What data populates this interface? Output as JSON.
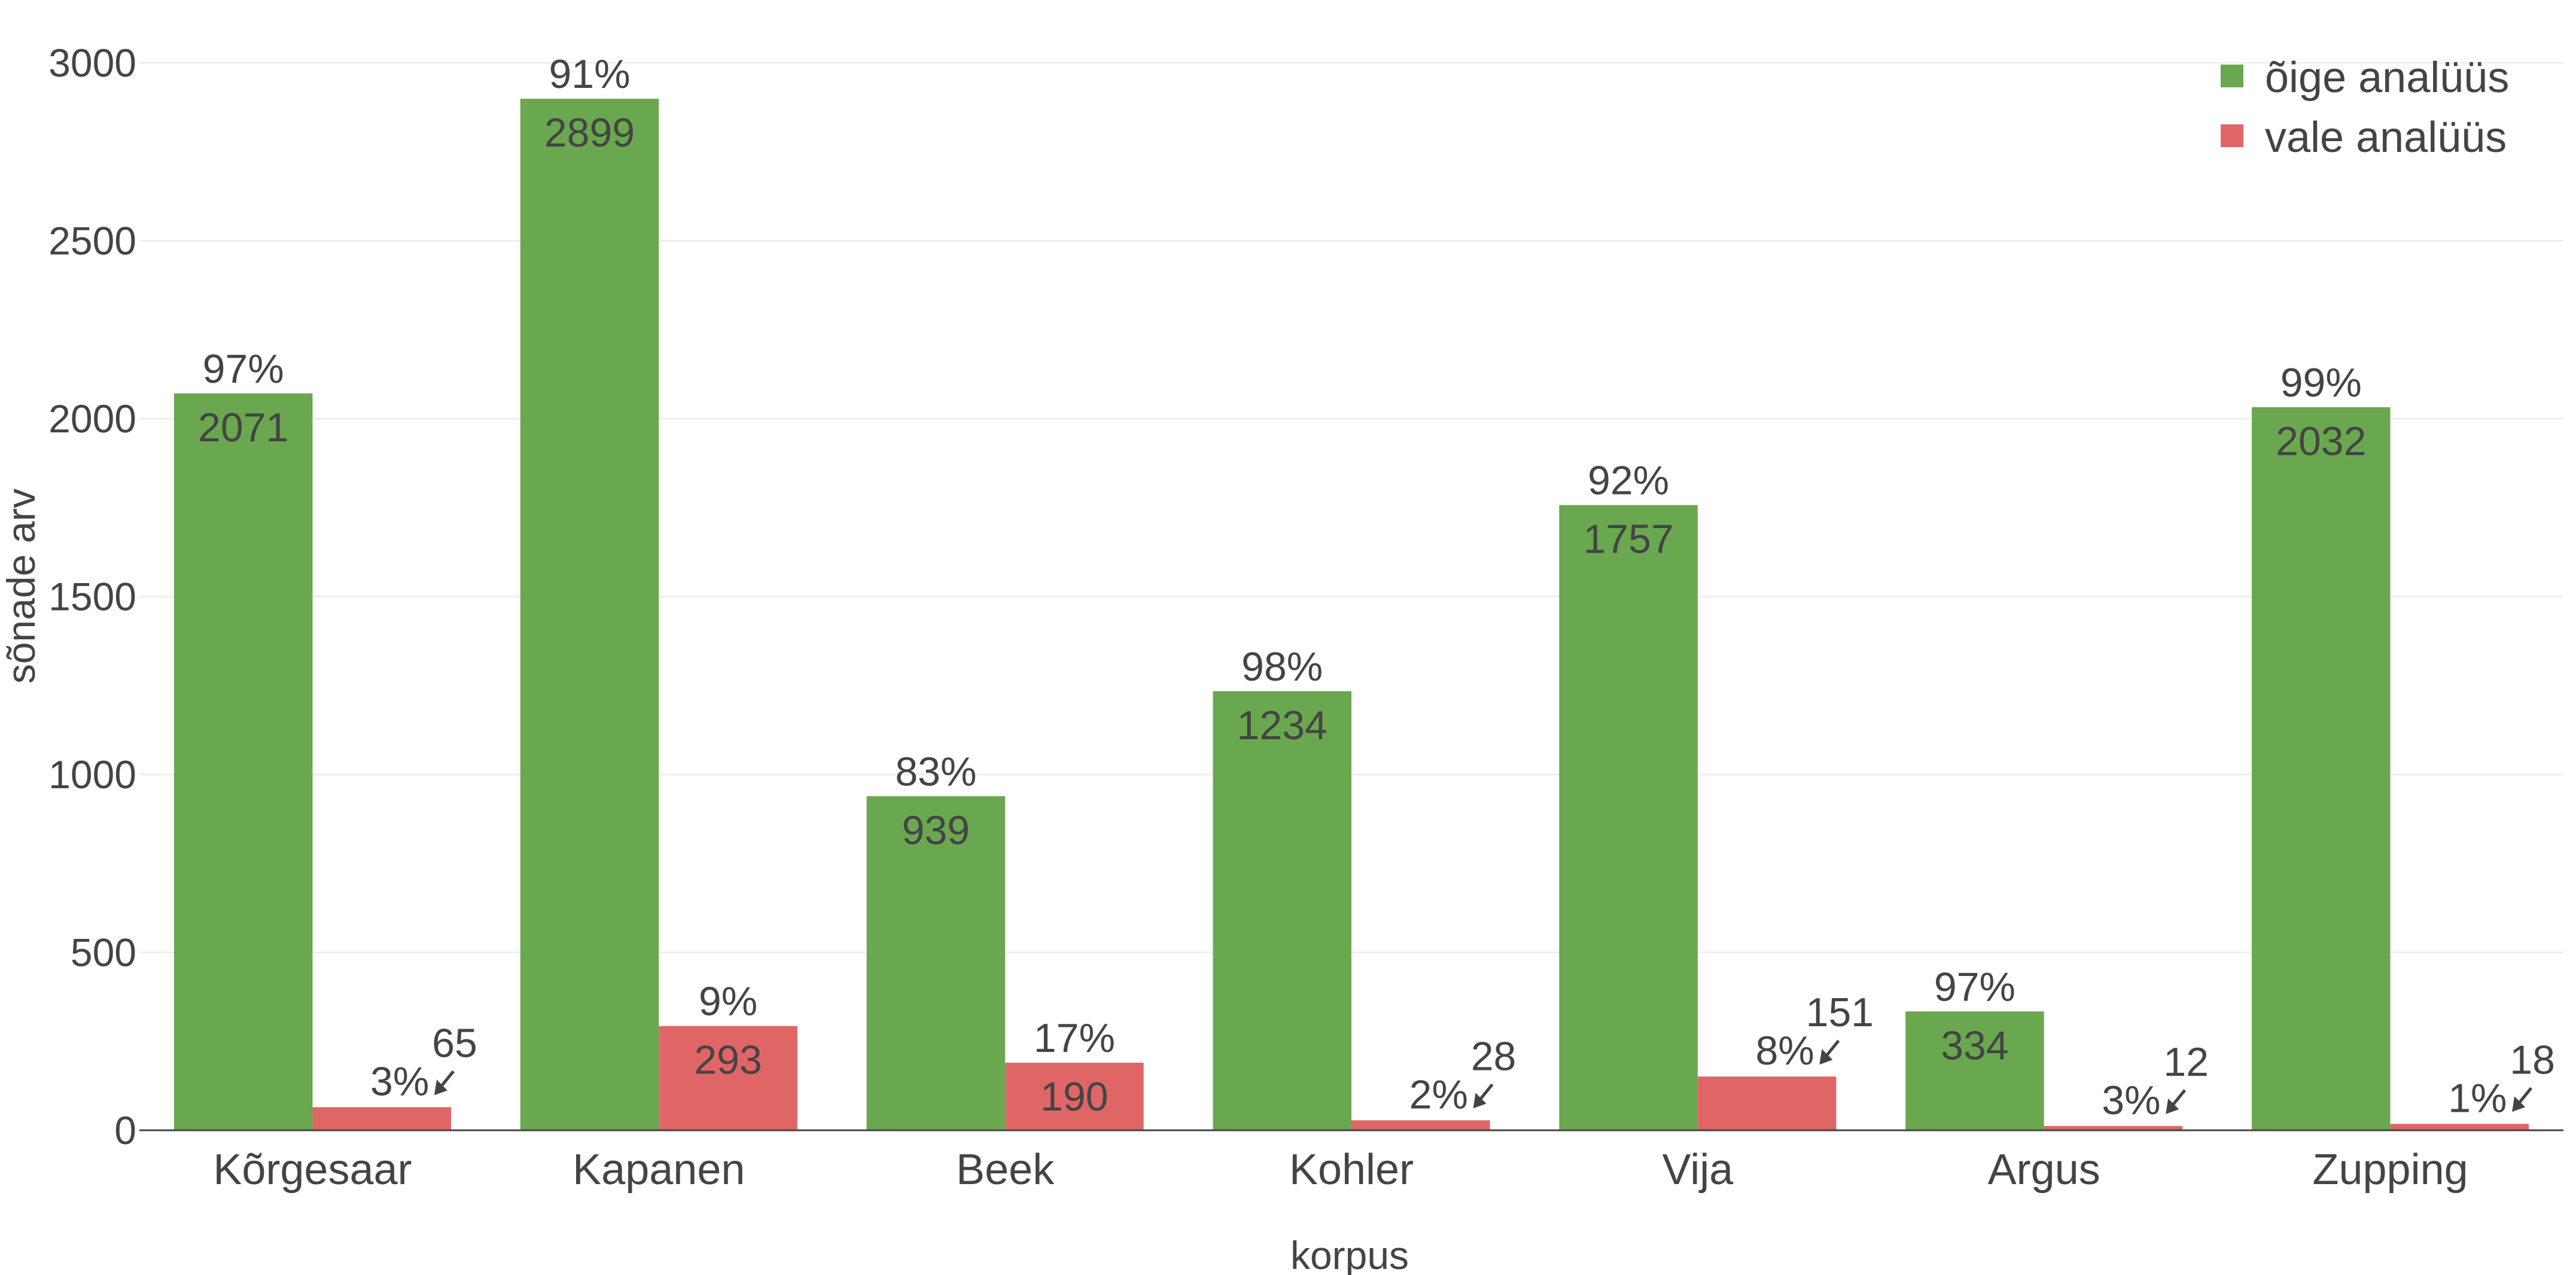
{
  "chart_data": {
    "type": "bar",
    "xlabel": "korpus",
    "ylabel": "sõnade arv",
    "ylim": [
      0,
      3000
    ],
    "yticks": [
      0,
      500,
      1000,
      1500,
      2000,
      2500,
      3000
    ],
    "grid": true,
    "legend_position": "top-right",
    "categories": [
      "Kõrgesaar",
      "Kapanen",
      "Beek",
      "Kohler",
      "Vija",
      "Argus",
      "Zupping"
    ],
    "series": [
      {
        "name": "õige analüüs",
        "color": "#6aa84f",
        "values": [
          2071,
          2899,
          939,
          1234,
          1757,
          334,
          2032
        ],
        "percent_labels": [
          "97%",
          "91%",
          "83%",
          "98%",
          "92%",
          "97%",
          "99%"
        ]
      },
      {
        "name": "vale analüüs",
        "color": "#e06666",
        "values": [
          65,
          293,
          190,
          28,
          151,
          12,
          18
        ],
        "percent_labels": [
          "3%",
          "9%",
          "17%",
          "2%",
          "8%",
          "3%",
          "1%"
        ]
      }
    ]
  }
}
